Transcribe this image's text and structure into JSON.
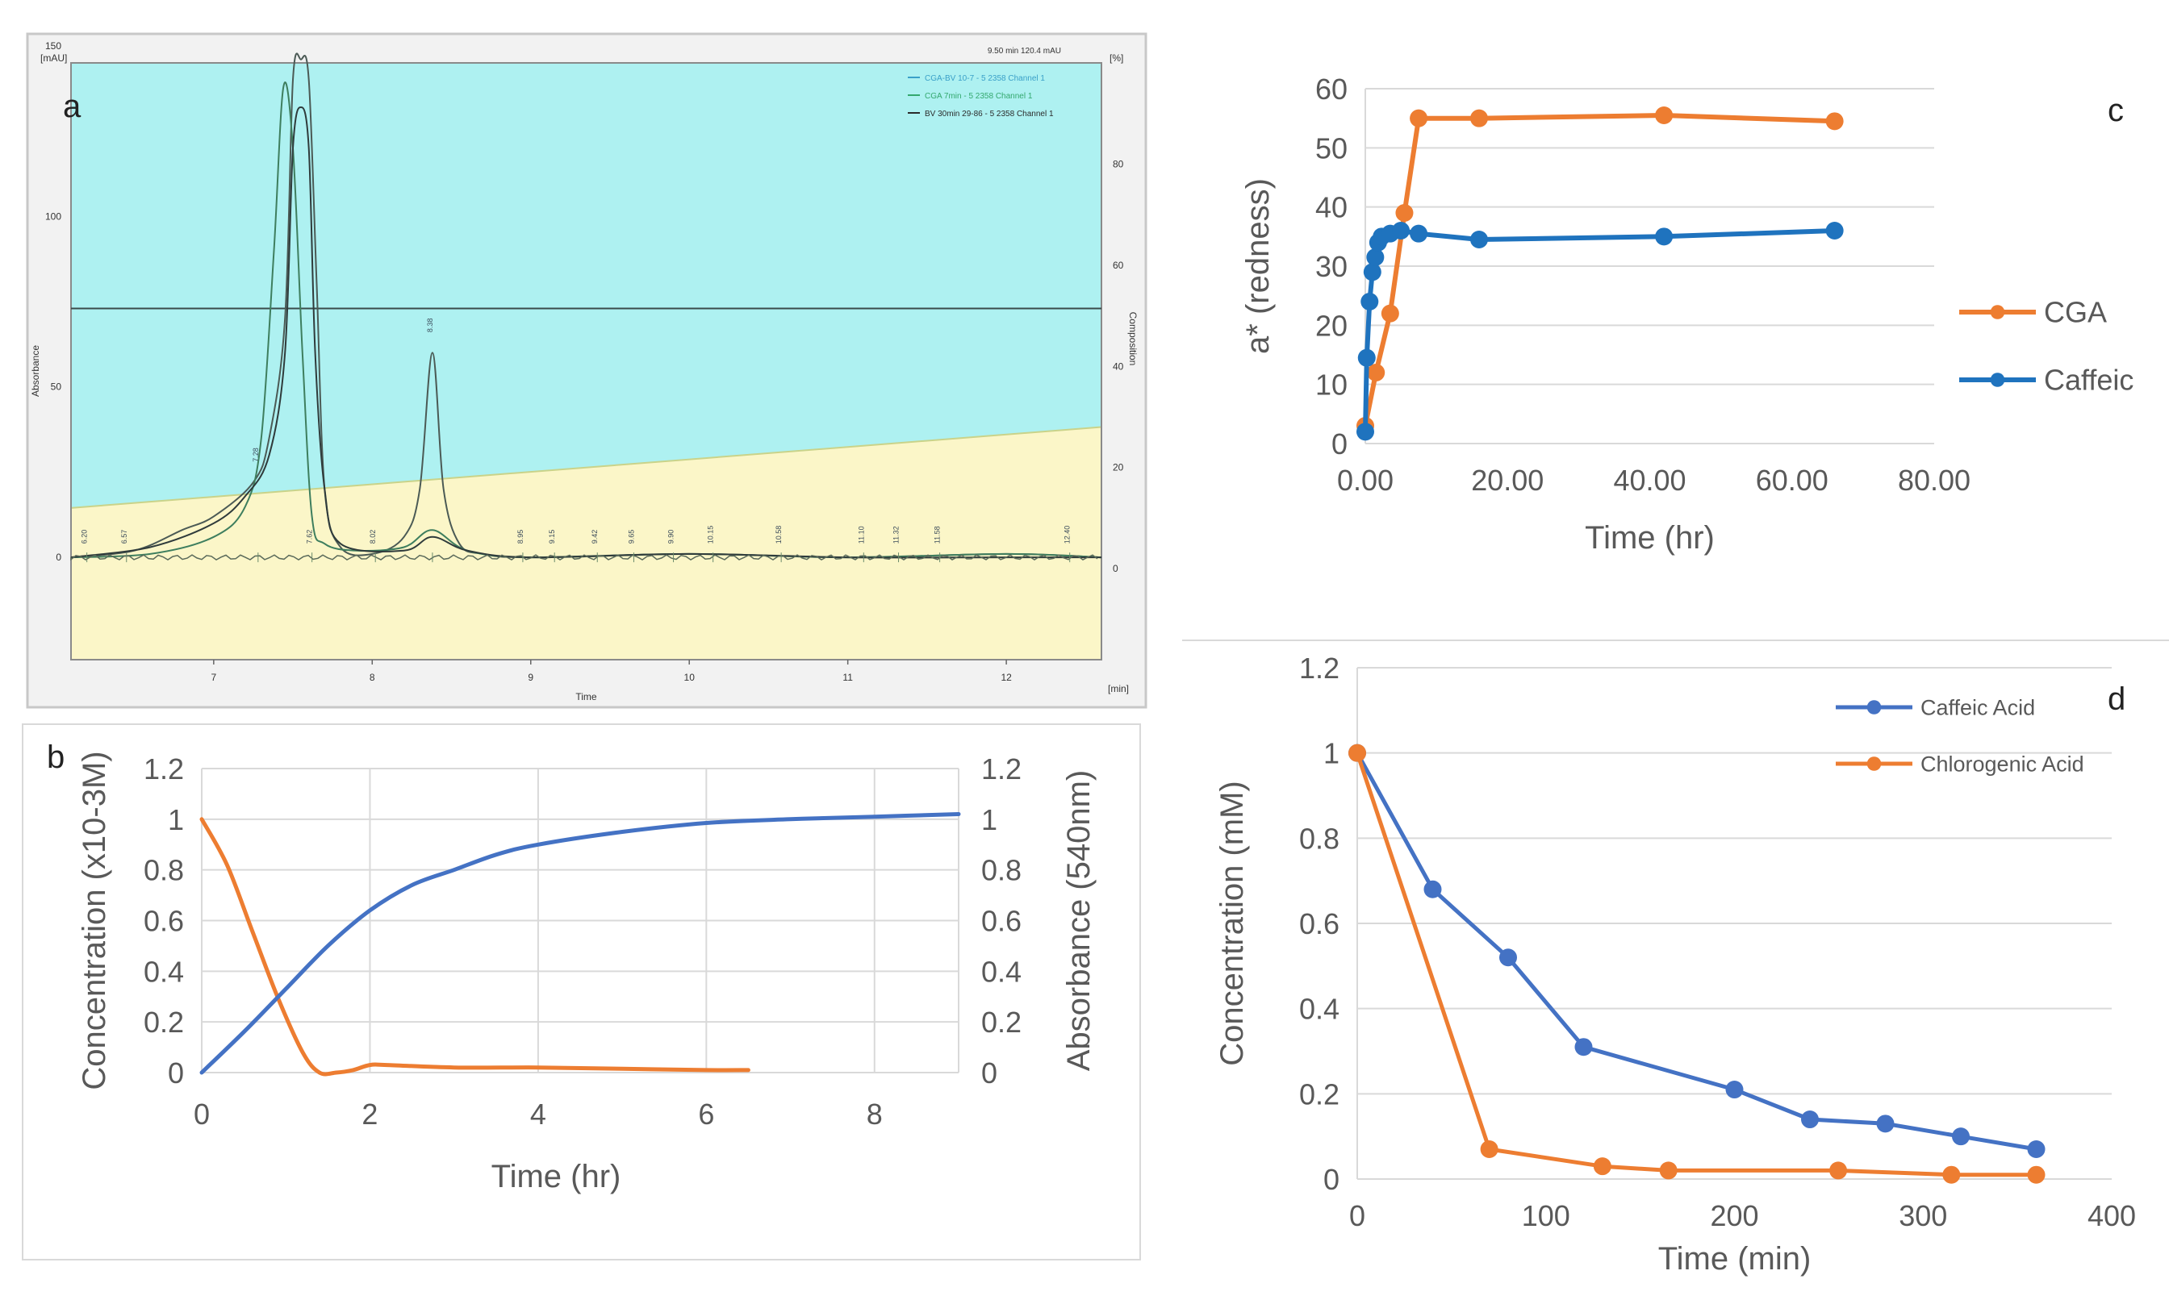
{
  "panels": {
    "a": {
      "label": "a"
    },
    "b": {
      "label": "b"
    },
    "c": {
      "label": "c"
    },
    "d": {
      "label": "d"
    }
  },
  "colors": {
    "orange": "#ED7D31",
    "blue": "#4472C4",
    "blue_c": "#1F73BE",
    "grid": "#d9d9d9",
    "axis": "#595959",
    "chrom_bg_top": "#aef1f1",
    "chrom_bg_bottom": "#fbf6c8",
    "chrom_trace": "#4d5a4d"
  },
  "chart_data": [
    {
      "panel": "a",
      "type": "line",
      "title": "",
      "xlabel": "Time",
      "ylabel": "Absorbance",
      "y2label": "Composition",
      "x_unit": "[min]",
      "y_unit": "[mAU]",
      "y2_unit": "[%]",
      "header_right": "9.50 min 120.4 mAU",
      "xlim": [
        6.1,
        12.6
      ],
      "ylim": [
        -30,
        145
      ],
      "y2lim": [
        -18,
        100
      ],
      "xticks": [
        "7",
        "8",
        "9",
        "10",
        "11",
        "12"
      ],
      "yticks": [
        "0",
        "50",
        "100",
        "150"
      ],
      "y2ticks": [
        "0",
        "20",
        "40",
        "60",
        "80"
      ],
      "horizontal_line_y": 73,
      "legend": [
        "CGA-BV 10-7 - 5 2358 Channel 1",
        "CGA 7min - 5 2358 Channel 1",
        "BV 30min 29-86 - 5 2358 Channel 1"
      ],
      "peak_labels": [
        {
          "x": 6.2,
          "text": "6.20"
        },
        {
          "x": 6.45,
          "text": "6.57"
        },
        {
          "x": 7.28,
          "text": "7.28"
        },
        {
          "x": 7.62,
          "text": "7.62"
        },
        {
          "x": 8.02,
          "text": "8.02"
        },
        {
          "x": 8.38,
          "text": "8.38"
        },
        {
          "x": 8.95,
          "text": "8.95"
        },
        {
          "x": 9.15,
          "text": "9.15"
        },
        {
          "x": 9.42,
          "text": "9.42"
        },
        {
          "x": 9.65,
          "text": "9.65"
        },
        {
          "x": 9.9,
          "text": "9.90"
        },
        {
          "x": 10.15,
          "text": "10.15"
        },
        {
          "x": 10.58,
          "text": "10.58"
        },
        {
          "x": 11.1,
          "text": "11.10"
        },
        {
          "x": 11.32,
          "text": "11.32"
        },
        {
          "x": 11.58,
          "text": "11.58"
        },
        {
          "x": 12.4,
          "text": "12.40"
        }
      ],
      "series": [
        {
          "name": "CGA-BV 10-7",
          "x": [
            6.1,
            6.5,
            6.8,
            7.0,
            7.25,
            7.35,
            7.45,
            7.5,
            7.55,
            7.6,
            7.65,
            7.7,
            7.8,
            8.0,
            8.2,
            8.3,
            8.38,
            8.45,
            8.55,
            8.7,
            9.0,
            10.0,
            11.0,
            12.0,
            12.6
          ],
          "y": [
            0,
            2,
            8,
            12,
            22,
            35,
            70,
            140,
            146,
            140,
            80,
            20,
            3,
            1,
            6,
            20,
            60,
            20,
            4,
            1,
            0,
            1,
            0,
            1,
            0
          ]
        },
        {
          "name": "CGA 7min",
          "x": [
            6.1,
            6.6,
            7.0,
            7.2,
            7.3,
            7.38,
            7.44,
            7.5,
            7.56,
            7.62,
            7.7,
            7.9,
            8.2,
            8.38,
            8.6,
            9.0,
            10.0,
            11.0,
            12.0,
            12.6
          ],
          "y": [
            0,
            1,
            6,
            15,
            35,
            90,
            138,
            120,
            60,
            12,
            4,
            2,
            3,
            8,
            2,
            0,
            1,
            0,
            1,
            0
          ]
        },
        {
          "name": "BV 30min",
          "x": [
            6.1,
            6.6,
            7.0,
            7.2,
            7.35,
            7.45,
            7.5,
            7.55,
            7.6,
            7.64,
            7.7,
            7.8,
            8.2,
            8.38,
            8.6,
            9.0,
            10.0,
            11.0,
            12.0,
            12.6
          ],
          "y": [
            0,
            3,
            10,
            18,
            30,
            60,
            120,
            132,
            120,
            60,
            20,
            4,
            2,
            6,
            2,
            0,
            1,
            0,
            0,
            0
          ]
        }
      ]
    },
    {
      "panel": "b",
      "type": "line",
      "title": "",
      "xlabel": "Time (hr)",
      "ylabel": "Concentration (x10-3M)",
      "y2label": "Absorbance (540nm)",
      "xlim": [
        0,
        9
      ],
      "ylim": [
        0,
        1.2
      ],
      "y2lim": [
        0,
        1.2
      ],
      "xticks": [
        "0",
        "2",
        "4",
        "6",
        "8"
      ],
      "yticks": [
        "0",
        "0.2",
        "0.4",
        "0.6",
        "0.8",
        "1",
        "1.2"
      ],
      "y2ticks": [
        "0",
        "0.2",
        "0.4",
        "0.6",
        "0.8",
        "1",
        "1.2"
      ],
      "series": [
        {
          "name": "Concentration",
          "color": "#ED7D31",
          "x": [
            0,
            0.3,
            0.6,
            0.9,
            1.2,
            1.4,
            1.6,
            1.8,
            2.0,
            2.2,
            3,
            4,
            5,
            6,
            6.5
          ],
          "y": [
            1.0,
            0.82,
            0.56,
            0.3,
            0.08,
            0.0,
            0.0,
            0.01,
            0.03,
            0.03,
            0.02,
            0.02,
            0.015,
            0.01,
            0.01
          ]
        },
        {
          "name": "Absorbance",
          "color": "#4472C4",
          "x": [
            0,
            0.5,
            1,
            1.5,
            2,
            2.5,
            3,
            3.5,
            4,
            5,
            6,
            7,
            8,
            9
          ],
          "y": [
            0,
            0.16,
            0.33,
            0.5,
            0.64,
            0.74,
            0.8,
            0.86,
            0.9,
            0.95,
            0.985,
            1.0,
            1.01,
            1.02
          ]
        }
      ]
    },
    {
      "panel": "c",
      "type": "line",
      "title": "",
      "xlabel": "Time (hr)",
      "ylabel": "a* (redness)",
      "xlim": [
        0,
        80
      ],
      "ylim": [
        0,
        60
      ],
      "xticks": [
        "0.00",
        "20.00",
        "40.00",
        "60.00",
        "80.00"
      ],
      "yticks": [
        "0",
        "10",
        "20",
        "30",
        "40",
        "50",
        "60"
      ],
      "series": [
        {
          "name": "CGA",
          "color": "#ED7D31",
          "x": [
            0,
            1.5,
            3.5,
            5.5,
            7.5,
            16,
            42,
            66
          ],
          "y": [
            3,
            12,
            22,
            39,
            55,
            55,
            55.5,
            54.5
          ]
        },
        {
          "name": "Caffeic",
          "color": "#1F73BE",
          "x": [
            0,
            0.2,
            0.6,
            1.0,
            1.4,
            1.8,
            2.3,
            3.5,
            5,
            7.5,
            16,
            42,
            66
          ],
          "y": [
            2,
            14.5,
            24,
            29,
            31.5,
            34,
            35,
            35.5,
            36,
            35.5,
            34.5,
            35,
            36
          ]
        }
      ]
    },
    {
      "panel": "d",
      "type": "line",
      "title": "",
      "xlabel": "Time (min)",
      "ylabel": "Concentration (mM)",
      "xlim": [
        0,
        400
      ],
      "ylim": [
        0,
        1.2
      ],
      "xticks": [
        "0",
        "100",
        "200",
        "300",
        "400"
      ],
      "yticks": [
        "0",
        "0.2",
        "0.4",
        "0.6",
        "0.8",
        "1",
        "1.2"
      ],
      "series": [
        {
          "name": "Caffeic Acid",
          "color": "#4472C4",
          "x": [
            0,
            40,
            80,
            120,
            200,
            240,
            280,
            320,
            360
          ],
          "y": [
            1,
            0.68,
            0.52,
            0.31,
            0.21,
            0.14,
            0.13,
            0.1,
            0.07
          ]
        },
        {
          "name": "Chlorogenic Acid",
          "color": "#ED7D31",
          "x": [
            0,
            70,
            130,
            165,
            255,
            315,
            360
          ],
          "y": [
            1,
            0.07,
            0.03,
            0.02,
            0.02,
            0.01,
            0.01
          ]
        }
      ]
    }
  ]
}
